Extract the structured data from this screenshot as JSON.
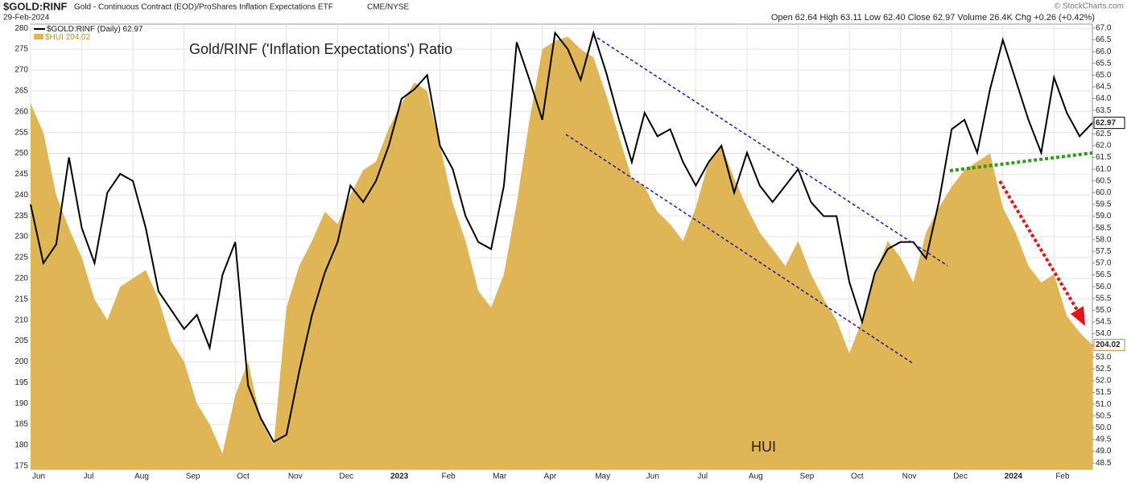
{
  "chart_data": {
    "type": "line",
    "symbol": "$GOLD:RINF",
    "description": "Gold - Continuous Contract (EOD)/ProShares Inflation Expectations ETF",
    "exchange": "CME/NYSE",
    "date": "29-Feb-2024",
    "stats": "Open 62.64 High 63.11 Low 62.40 Close 62.97 Volume 26.4K Chg +0.26 (+0.42%)",
    "credit": "© StockCharts.com",
    "annotations": [
      "Gold/RINF ('Inflation Expectations') Ratio",
      "HUI"
    ],
    "categories": [
      "Jun",
      null,
      null,
      null,
      "Jul",
      null,
      null,
      null,
      "Aug",
      null,
      null,
      null,
      "Sep",
      null,
      null,
      null,
      "Oct",
      null,
      null,
      null,
      "Nov",
      null,
      null,
      null,
      "Dec",
      null,
      null,
      null,
      "2023",
      null,
      null,
      null,
      "Feb",
      null,
      null,
      null,
      "Mar",
      null,
      null,
      null,
      "Apr",
      null,
      null,
      null,
      "May",
      null,
      null,
      null,
      "Jun",
      null,
      null,
      null,
      "Jul",
      null,
      null,
      null,
      "Aug",
      null,
      null,
      null,
      "Sep",
      null,
      null,
      null,
      "Oct",
      null,
      null,
      null,
      "Nov",
      null,
      null,
      null,
      "Dec",
      null,
      null,
      null,
      "2024",
      null,
      null,
      null,
      "Feb",
      null,
      null,
      null
    ],
    "series": [
      {
        "name": "$GOLD:RINF (Daily)",
        "type": "line",
        "axis": "y2",
        "color": "#000000",
        "values": [
          59.5,
          57.0,
          57.8,
          61.5,
          58.5,
          57.0,
          60.0,
          60.8,
          60.5,
          58.5,
          55.8,
          55.0,
          54.2,
          54.8,
          53.4,
          56.5,
          57.9,
          51.8,
          50.4,
          49.4,
          49.7,
          52.4,
          54.8,
          56.6,
          57.9,
          60.3,
          59.6,
          60.5,
          62.0,
          64.0,
          64.4,
          65.0,
          62.0,
          61.0,
          59.0,
          57.9,
          57.6,
          60.3,
          66.4,
          64.8,
          63.1,
          66.8,
          66.1,
          64.8,
          66.8,
          65.1,
          63.1,
          61.3,
          63.4,
          62.4,
          62.7,
          61.3,
          60.3,
          61.3,
          62.0,
          60.0,
          61.7,
          60.3,
          59.6,
          60.3,
          61.0,
          59.6,
          59.0,
          59.0,
          56.2,
          54.5,
          56.6,
          57.6,
          57.9,
          57.9,
          57.2,
          59.6,
          62.7,
          63.1,
          61.7,
          64.4,
          66.5,
          64.8,
          63.1,
          61.7,
          64.9,
          63.4,
          62.4,
          62.97
        ]
      },
      {
        "name": "$HUI",
        "type": "area",
        "axis": "y",
        "color": "#dfb556",
        "values": [
          262,
          255,
          240,
          232,
          225,
          215,
          210,
          218,
          220,
          222,
          215,
          205,
          200,
          190,
          185,
          178,
          192,
          200,
          186,
          180,
          213,
          223,
          229,
          236,
          233,
          240,
          246,
          248,
          256,
          262,
          267,
          265,
          252,
          238,
          229,
          217,
          213,
          221,
          238,
          258,
          275,
          277,
          278,
          275,
          273,
          264,
          254,
          244,
          242,
          236,
          233,
          229,
          237,
          248,
          252,
          244,
          237,
          231,
          227,
          223,
          229,
          221,
          215,
          210,
          202,
          210,
          221,
          229,
          225,
          219,
          231,
          237,
          242,
          246,
          248,
          250,
          237,
          231,
          223,
          219,
          221,
          211,
          207,
          204.02
        ]
      }
    ],
    "ylim": [
      174.2,
      281
    ],
    "yticks": [
      175,
      180,
      185,
      190,
      195,
      200,
      205,
      210,
      215,
      220,
      225,
      230,
      235,
      240,
      245,
      250,
      255,
      260,
      265,
      270,
      275,
      280
    ],
    "y2lim": [
      48.23,
      67.17
    ],
    "y2ticks": [
      48.5,
      {
        "value": 49,
        "label": "49.0"
      },
      49.5,
      {
        "value": 50,
        "label": "50.0"
      },
      50.5,
      {
        "value": 51,
        "label": "51.0"
      },
      51.5,
      {
        "value": 52,
        "label": "52.0"
      },
      52.5,
      {
        "value": 53,
        "label": "53.0"
      },
      53.5,
      {
        "value": 54,
        "label": "54.0"
      },
      54.5,
      {
        "value": 55,
        "label": "55.0"
      },
      55.5,
      {
        "value": 56,
        "label": "56.0"
      },
      56.5,
      {
        "value": 57,
        "label": "57.0"
      },
      57.5,
      {
        "value": 58,
        "label": "58.0"
      },
      58.5,
      {
        "value": 59,
        "label": "59.0"
      },
      59.5,
      {
        "value": 60,
        "label": "60.0"
      },
      60.5,
      {
        "value": 61,
        "label": "61.0"
      },
      61.5,
      {
        "value": 62,
        "label": "62.0"
      },
      62.5,
      {
        "value": 63,
        "label": "63.0"
      },
      63.5,
      {
        "value": 64,
        "label": "64.0"
      },
      64.5,
      {
        "value": 65,
        "label": "65.0"
      },
      65.5,
      {
        "value": 66,
        "label": "66.0"
      },
      66.5,
      {
        "value": 67,
        "label": "67.0"
      }
    ],
    "grid": true
  }
}
